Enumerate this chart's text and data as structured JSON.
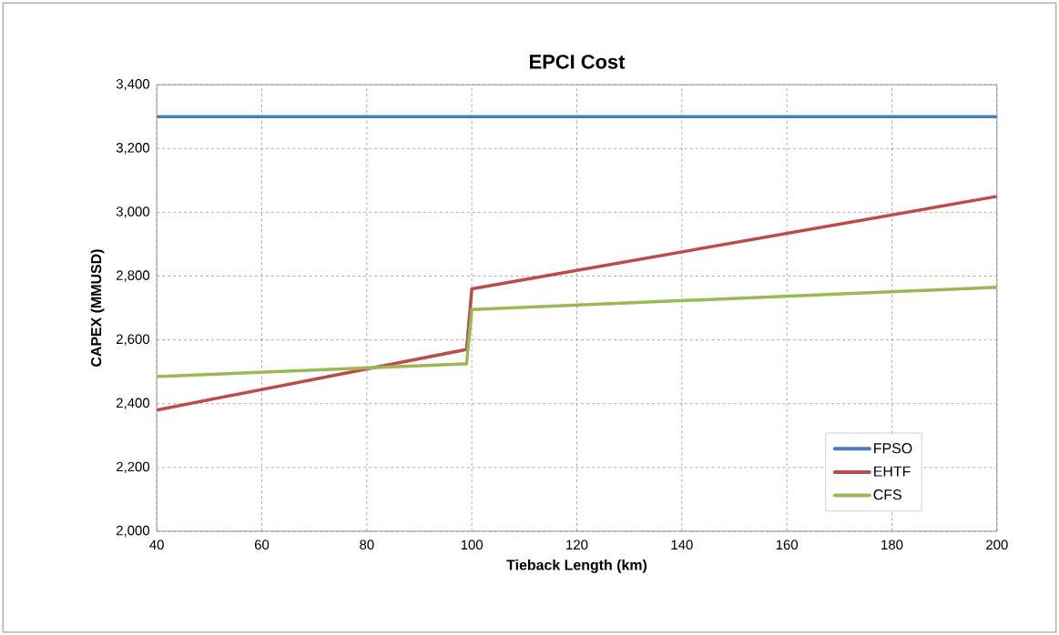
{
  "chart_data": {
    "type": "line",
    "title": "EPCI Cost",
    "xlabel": "Tieback Length (km)",
    "ylabel": "CAPEX (MMUSD)",
    "xlim": [
      40,
      200
    ],
    "xticks": [
      40,
      60,
      80,
      100,
      120,
      140,
      160,
      180,
      200
    ],
    "ylim": [
      2000,
      3400
    ],
    "yticks": [
      {
        "value": 2000,
        "label": "2,000"
      },
      {
        "value": 2200,
        "label": "2,200"
      },
      {
        "value": 2400,
        "label": "2,400"
      },
      {
        "value": 2600,
        "label": "2,600"
      },
      {
        "value": 2800,
        "label": "2,800"
      },
      {
        "value": 3000,
        "label": "3,000"
      },
      {
        "value": 3200,
        "label": "3,200"
      },
      {
        "value": 3400,
        "label": "3,400"
      }
    ],
    "grid": true,
    "legend": "bottom right",
    "marker": "none",
    "line_style": "solid",
    "series": [
      {
        "name": "FPSO",
        "color": "#4a7ebb",
        "x": [
          40,
          200
        ],
        "values": [
          3300,
          3300
        ]
      },
      {
        "name": "EHTF",
        "color": "#be4b48",
        "x": [
          40,
          99,
          100,
          200
        ],
        "values": [
          2380,
          2570,
          2760,
          3050
        ]
      },
      {
        "name": "CFS",
        "color": "#98b954",
        "x": [
          40,
          99,
          100,
          200
        ],
        "values": [
          2485,
          2525,
          2695,
          2765
        ]
      }
    ]
  }
}
